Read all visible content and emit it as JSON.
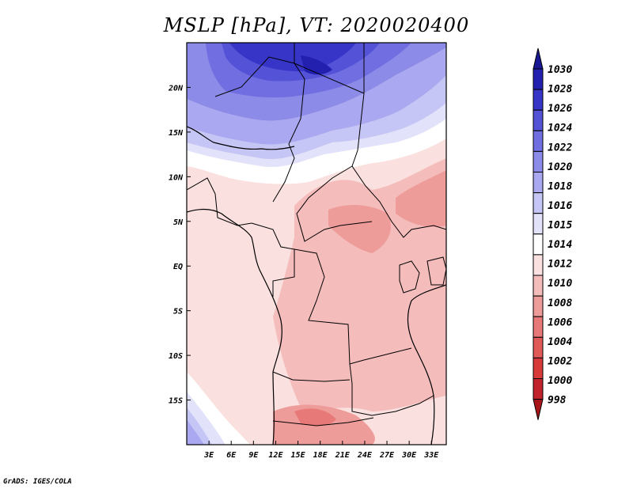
{
  "title": "MSLP [hPa], VT: 2020020400",
  "footer": "GrADS: IGES/COLA",
  "map": {
    "lon_range": [
      0,
      35
    ],
    "lat_range": [
      -20,
      25
    ],
    "x_ticks": [
      "3E",
      "6E",
      "9E",
      "12E",
      "15E",
      "18E",
      "21E",
      "24E",
      "27E",
      "30E",
      "33E"
    ],
    "x_tick_values": [
      3,
      6,
      9,
      12,
      15,
      18,
      21,
      24,
      27,
      30,
      33
    ],
    "y_ticks": [
      "20N",
      "15N",
      "10N",
      "5N",
      "EQ",
      "5S",
      "10S",
      "15S"
    ],
    "y_tick_values": [
      20,
      15,
      10,
      5,
      0,
      -5,
      -10,
      -15
    ]
  },
  "colorbar": {
    "labels": [
      "998",
      "1000",
      "1002",
      "1004",
      "1006",
      "1008",
      "1010",
      "1012",
      "1014",
      "1015",
      "1016",
      "1018",
      "1020",
      "1022",
      "1024",
      "1026",
      "1028",
      "1030"
    ],
    "colors": [
      "#a8161c",
      "#c0232b",
      "#d83a3a",
      "#e05a58",
      "#e77a78",
      "#ee9c9a",
      "#f4bcbb",
      "#fae0df",
      "#ffffff",
      "#e2e3fb",
      "#c6c6f6",
      "#a9a8f0",
      "#8d8be8",
      "#706ee0",
      "#5452d6",
      "#3735c8",
      "#2320b0",
      "#1a1795"
    ],
    "arrow_top_color": "#1a1795",
    "arrow_bottom_color": "#a8161c"
  }
}
